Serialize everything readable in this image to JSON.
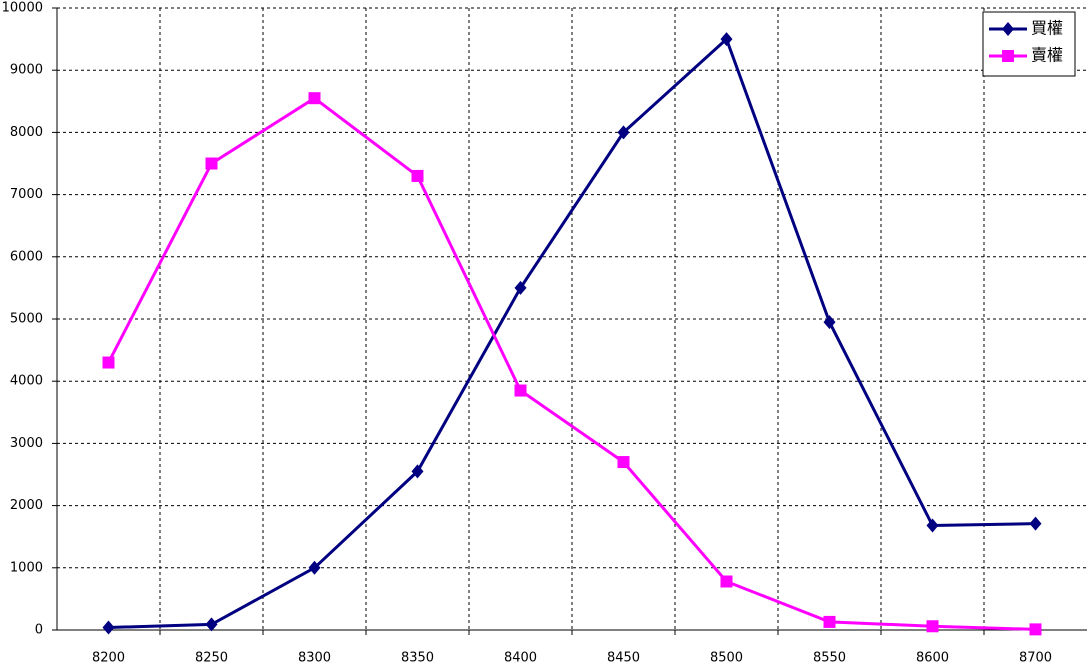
{
  "chart_data": {
    "type": "line",
    "categories": [
      "8200",
      "8250",
      "8300",
      "8350",
      "8400",
      "8450",
      "8500",
      "8550",
      "8600",
      "8700"
    ],
    "series": [
      {
        "name": "買權",
        "color": "#000080",
        "marker": "diamond",
        "values": [
          40,
          90,
          1000,
          2550,
          5500,
          8000,
          9500,
          4950,
          1680,
          1710
        ]
      },
      {
        "name": "賣權",
        "color": "#ff00ff",
        "marker": "square",
        "values": [
          4300,
          7500,
          8550,
          7300,
          3850,
          2700,
          780,
          130,
          60,
          10
        ]
      }
    ],
    "ylim": [
      0,
      10000
    ],
    "yticks": [
      0,
      1000,
      2000,
      3000,
      4000,
      5000,
      6000,
      7000,
      8000,
      9000,
      10000
    ],
    "grid": true,
    "legend": "top-right"
  }
}
